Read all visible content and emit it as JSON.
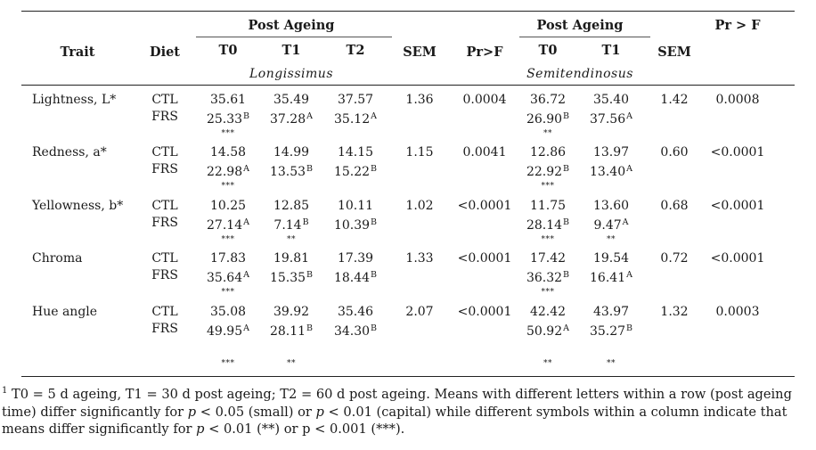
{
  "header": {
    "trait": "Trait",
    "diet": "Diet",
    "post_ageing_1": "Post Ageing",
    "post_ageing_2": "Post Ageing",
    "prf_top": "Pr > F",
    "t0": "T0",
    "t1": "T1",
    "t2": "T2",
    "sem1": "SEM",
    "prf1": "Pr>F",
    "t0b": "T0",
    "t1b": "T1",
    "sem2": "SEM",
    "muscle1": "Longissimus",
    "muscle2": "Semitendinosus"
  },
  "rows": [
    {
      "trait": "Lightness, L*",
      "ctl": {
        "diet": "CTL",
        "t0": "35.61",
        "t1": "35.49",
        "t2": "37.57",
        "s0": "36.72",
        "s1": "35.40"
      },
      "frs": {
        "diet": "FRS",
        "t0": "25.33",
        "t0s": "B",
        "t1": "37.28",
        "t1s": "A",
        "t2": "35.12",
        "t2s": "A",
        "s0": "26.90",
        "s0s": "B",
        "s1": "37.56",
        "s1s": "A"
      },
      "stars": {
        "t0": "***",
        "t1": "",
        "t2": "",
        "s0": "**",
        "s1": ""
      },
      "sem1": "1.36",
      "prf1": "0.0004",
      "sem2": "1.42",
      "prf2": "0.0008"
    },
    {
      "trait": "Redness, a*",
      "ctl": {
        "diet": "CTL",
        "t0": "14.58",
        "t1": "14.99",
        "t2": "14.15",
        "s0": "12.86",
        "s1": "13.97"
      },
      "frs": {
        "diet": "FRS",
        "t0": "22.98",
        "t0s": "A",
        "t1": "13.53",
        "t1s": "B",
        "t2": "15.22",
        "t2s": "B",
        "s0": "22.92",
        "s0s": "B",
        "s1": "13.40",
        "s1s": "A"
      },
      "stars": {
        "t0": "***",
        "t1": "",
        "t2": "",
        "s0": "***",
        "s1": ""
      },
      "sem1": "1.15",
      "prf1": "0.0041",
      "sem2": "0.60",
      "prf2": "<0.0001"
    },
    {
      "trait": "Yellowness, b*",
      "ctl": {
        "diet": "CTL",
        "t0": "10.25",
        "t1": "12.85",
        "t2": "10.11",
        "s0": "11.75",
        "s1": "13.60"
      },
      "frs": {
        "diet": "FRS",
        "t0": "27.14",
        "t0s": "A",
        "t1": "7.14",
        "t1s": "B",
        "t2": "10.39",
        "t2s": "B",
        "s0": "28.14",
        "s0s": "B",
        "s1": "9.47",
        "s1s": "A"
      },
      "stars": {
        "t0": "***",
        "t1": "**",
        "t2": "",
        "s0": "***",
        "s1": "**"
      },
      "sem1": "1.02",
      "prf1": "<0.0001",
      "sem2": "0.68",
      "prf2": "<0.0001"
    },
    {
      "trait": "Chroma",
      "ctl": {
        "diet": "CTL",
        "t0": "17.83",
        "t1": "19.81",
        "t2": "17.39",
        "s0": "17.42",
        "s1": "19.54"
      },
      "frs": {
        "diet": "FRS",
        "t0": "35.64",
        "t0s": "A",
        "t1": "15.35",
        "t1s": "B",
        "t2": "18.44",
        "t2s": "B",
        "s0": "36.32",
        "s0s": "B",
        "s1": "16.41",
        "s1s": "A"
      },
      "stars": {
        "t0": "***",
        "t1": "",
        "t2": "",
        "s0": "***",
        "s1": ""
      },
      "sem1": "1.33",
      "prf1": "<0.0001",
      "sem2": "0.72",
      "prf2": "<0.0001"
    },
    {
      "trait": "Hue angle",
      "ctl": {
        "diet": "CTL",
        "t0": "35.08",
        "t1": "39.92",
        "t2": "35.46",
        "s0": "42.42",
        "s1": "43.97"
      },
      "frs": {
        "diet": "FRS",
        "t0": "49.95",
        "t0s": "A",
        "t1": "28.11",
        "t1s": "B",
        "t2": "34.30",
        "t2s": "B",
        "s0": "50.92",
        "s0s": "A",
        "s1": "35.27",
        "s1s": "B"
      },
      "stars": {
        "t0": "***",
        "t1": "**",
        "t2": "",
        "s0": "**",
        "s1": "**"
      },
      "sem1": "2.07",
      "prf1": "<0.0001",
      "sem2": "1.32",
      "prf2": "0.0003"
    }
  ],
  "footnote": {
    "marker": "1",
    "text_a": " T0 = 5 d ageing, T1 = 30 d post ageing; T2 = 60 d post ageing. Means with different letters within a row (post ageing time) differ significantly for ",
    "p1": "p",
    "text_b": " < 0.05 (small) or ",
    "p2": "p",
    "text_c": " < 0.01 (capital) while different symbols within a column indicate that means differ significantly for ",
    "p3": "p",
    "text_d": " < 0.01 (**) or p < 0.001 (***)."
  }
}
